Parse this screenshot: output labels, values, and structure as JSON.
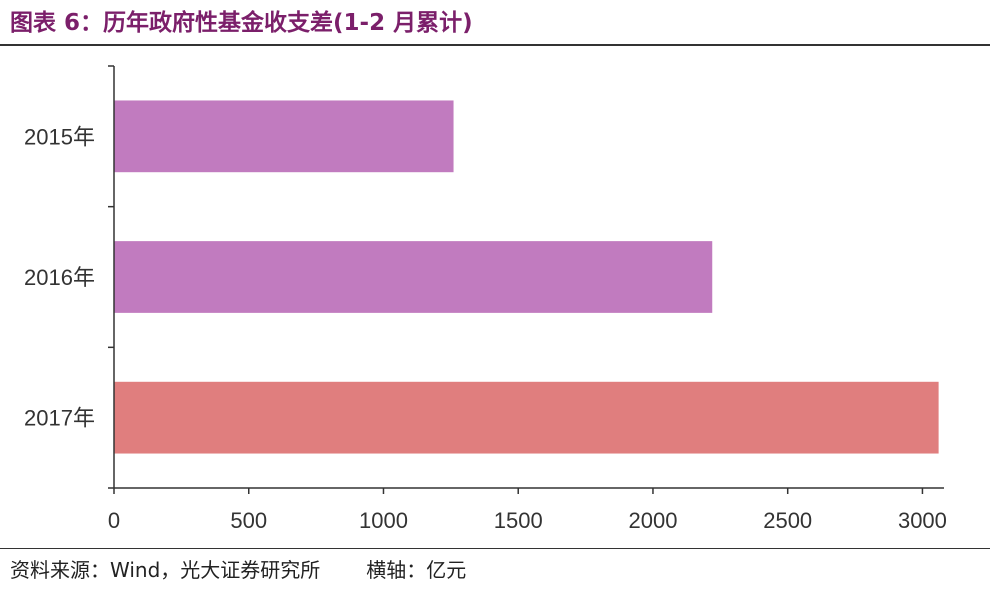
{
  "title": "图表 6：历年政府性基金收支差(1-2 月累计)",
  "footer": {
    "source": "资料来源：Wind，光大证券研究所",
    "unit_note": "横轴：亿元"
  },
  "colors": {
    "title": "#7b1f6a",
    "bar_2015": "#c17bbf",
    "bar_2016": "#c17bbf",
    "bar_2017": "#e07e7e",
    "axis": "#333333"
  },
  "chart_data": {
    "type": "bar",
    "orientation": "horizontal",
    "title": "图表 6：历年政府性基金收支差(1-2 月累计)",
    "xlabel": "",
    "ylabel": "",
    "categories": [
      "2015年",
      "2016年",
      "2017年"
    ],
    "values": [
      1260,
      2220,
      3060
    ],
    "xlim": [
      0,
      3080
    ],
    "xticks": [
      0,
      500,
      1000,
      1500,
      2000,
      2500,
      3000
    ],
    "xtick_labels": [
      "0",
      "500",
      "1000",
      "1500",
      "2000",
      "2500",
      "3000"
    ],
    "grid": false,
    "legend": "none"
  }
}
